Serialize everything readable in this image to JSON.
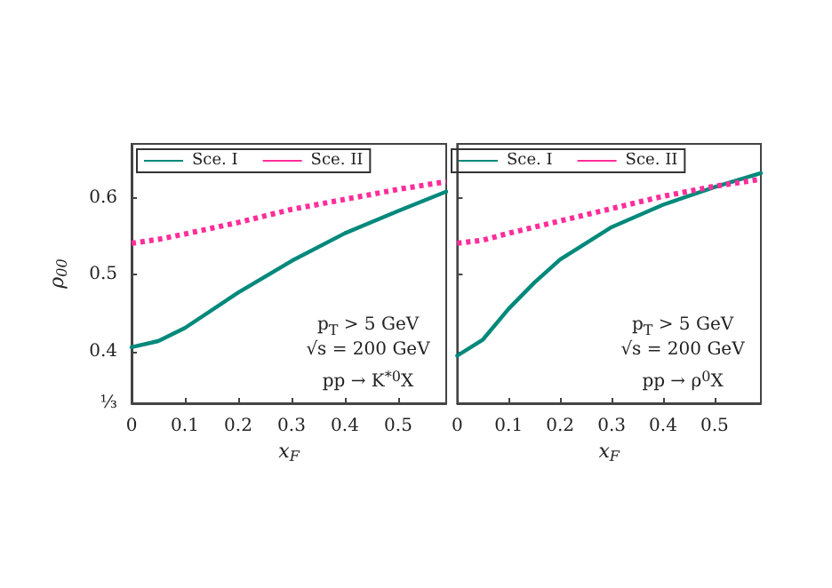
{
  "chart_data": [
    {
      "type": "line",
      "ylabel": "ρ$_{00}$",
      "xlabel": "x$_{F}$",
      "x": [
        0,
        0.05,
        0.1,
        0.2,
        0.3,
        0.4,
        0.5,
        0.59
      ],
      "series": [
        {
          "name": "Sce. I",
          "color": "#00897b",
          "line_style": "solid",
          "values": [
            0.406,
            0.414,
            0.431,
            0.477,
            0.518,
            0.554,
            0.583,
            0.608
          ]
        },
        {
          "name": "Sce. II",
          "color": "#ff2d9a",
          "line_style": "dotted",
          "values": [
            0.541,
            0.546,
            0.553,
            0.568,
            0.585,
            0.598,
            0.611,
            0.621
          ]
        }
      ],
      "xlim": [
        0,
        0.59
      ],
      "xticks": [
        0,
        0.1,
        0.2,
        0.3,
        0.4,
        0.5
      ],
      "ylim": [
        0.3333,
        0.67
      ],
      "yticks": [
        {
          "value": 0.3333,
          "label": "⅓"
        },
        0.4,
        0.5,
        0.6
      ],
      "legend": "top left",
      "grid": false,
      "marker": "none",
      "annotations": [
        "p$_{T}$ > 5 GeV",
        "√s = 200 GeV",
        "pp → K$^{*0}$X"
      ]
    },
    {
      "type": "line",
      "xlabel": "x$_{F}$",
      "x": [
        0,
        0.05,
        0.1,
        0.15,
        0.2,
        0.3,
        0.4,
        0.5,
        0.59
      ],
      "series": [
        {
          "name": "Sce. I",
          "color": "#00897b",
          "line_style": "solid",
          "values": [
            0.395,
            0.416,
            0.456,
            0.49,
            0.52,
            0.562,
            0.591,
            0.614,
            0.632
          ]
        },
        {
          "name": "Sce. II",
          "color": "#ff2d9a",
          "line_style": "dotted",
          "values": [
            0.541,
            0.545,
            0.554,
            0.562,
            0.57,
            0.586,
            0.602,
            0.615,
            0.624
          ]
        }
      ],
      "xlim": [
        0,
        0.59
      ],
      "xticks": [
        0,
        0.1,
        0.2,
        0.3,
        0.4,
        0.5
      ],
      "ylim": [
        0.3333,
        0.67
      ],
      "yticks": [
        0.4,
        0.5,
        0.6
      ],
      "tick_labels": "x",
      "legend": "top left",
      "grid": false,
      "marker": "none",
      "annotations": [
        "p$_{T}$ > 5 GeV",
        "√s = 200 GeV",
        "pp → ρ$^{0}$X"
      ]
    }
  ]
}
